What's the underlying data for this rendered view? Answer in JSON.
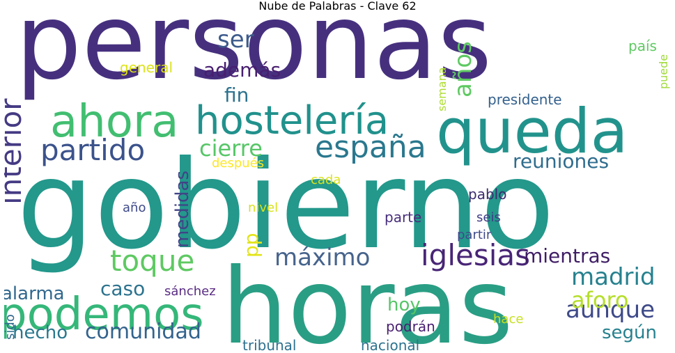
{
  "title": "Nube de Palabras - Clave 62",
  "words": [
    {
      "text": "personas",
      "color": "#46307e"
    },
    {
      "text": "gobierno",
      "color": "#23988b"
    },
    {
      "text": "horas",
      "color": "#2a9e84"
    },
    {
      "text": "queda",
      "color": "#22938c"
    },
    {
      "text": "hostelería",
      "color": "#21918c"
    },
    {
      "text": "ahora",
      "color": "#42be71"
    },
    {
      "text": "podemos",
      "color": "#35b779"
    },
    {
      "text": "españa",
      "color": "#2a788e"
    },
    {
      "text": "partido",
      "color": "#3b528b"
    },
    {
      "text": "interior",
      "color": "#443a83"
    },
    {
      "text": "iglesias",
      "color": "#482576"
    },
    {
      "text": "toque",
      "color": "#5ec962"
    },
    {
      "text": "máximo",
      "color": "#46638c"
    },
    {
      "text": "comunidad",
      "color": "#33638d"
    },
    {
      "text": "madrid",
      "color": "#26818e"
    },
    {
      "text": "aunque",
      "color": "#3e4a89"
    },
    {
      "text": "aforo",
      "color": "#b5de2b"
    },
    {
      "text": "cierre",
      "color": "#56c667"
    },
    {
      "text": "reuniones",
      "color": "#2f6c8e"
    },
    {
      "text": "mientras",
      "color": "#3f1d65"
    },
    {
      "text": "años",
      "color": "#5ec962"
    },
    {
      "text": "ser",
      "color": "#3d5b8c"
    },
    {
      "text": "además",
      "color": "#481f70"
    },
    {
      "text": "medidas",
      "color": "#414487"
    },
    {
      "text": "caso",
      "color": "#2c738e"
    },
    {
      "text": "alarma",
      "color": "#31688e"
    },
    {
      "text": "hecho",
      "color": "#2a788e"
    },
    {
      "text": "según",
      "color": "#26818e"
    },
    {
      "text": "hoy",
      "color": "#56c667"
    },
    {
      "text": "fin",
      "color": "#2c728e"
    },
    {
      "text": "pp",
      "color": "#e2e418"
    },
    {
      "text": "general",
      "color": "#dde318"
    },
    {
      "text": "presidente",
      "color": "#34618d"
    },
    {
      "text": "país",
      "color": "#5ec962"
    },
    {
      "text": "puede",
      "color": "#a0da39"
    },
    {
      "text": "semana",
      "color": "#addc30"
    },
    {
      "text": "después",
      "color": "#fde725"
    },
    {
      "text": "cada",
      "color": "#dde318"
    },
    {
      "text": "nivel",
      "color": "#d8e219"
    },
    {
      "text": "pablo",
      "color": "#3b2a6e"
    },
    {
      "text": "año",
      "color": "#3e4a89"
    },
    {
      "text": "seis",
      "color": "#3f3d86"
    },
    {
      "text": "parte",
      "color": "#472d7b"
    },
    {
      "text": "partir",
      "color": "#3f4a8a"
    },
    {
      "text": "sánchez",
      "color": "#5a2c84"
    },
    {
      "text": "sido",
      "color": "#31688e"
    },
    {
      "text": "tribunal",
      "color": "#2d708e"
    },
    {
      "text": "nacional",
      "color": "#2c738e"
    },
    {
      "text": "podrán",
      "color": "#481f70"
    },
    {
      "text": "hace",
      "color": "#c8e020"
    }
  ]
}
